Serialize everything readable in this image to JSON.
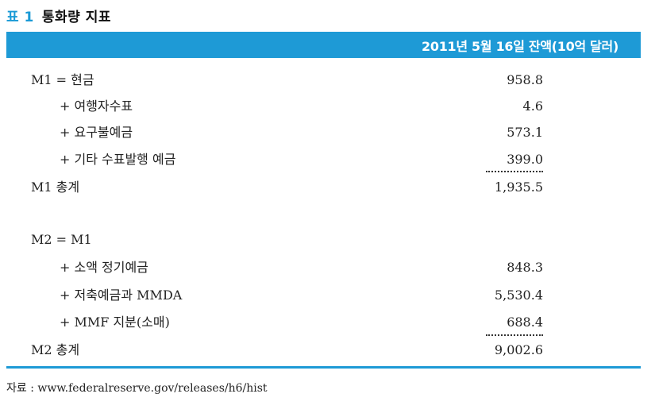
{
  "caption": {
    "label": "표 1",
    "title": "통화량 지표"
  },
  "header": {
    "text": "2011년 5월 16일 잔액(10억 달러)"
  },
  "m1": {
    "head": "M1 = 현금",
    "head_value": "958.8",
    "items": [
      {
        "label": "+ 여행자수표",
        "value": "4.6"
      },
      {
        "label": "+ 요구불예금",
        "value": "573.1"
      },
      {
        "label": "+ 기타 수표발행 예금",
        "value": "399.0"
      }
    ],
    "total_label": "M1 총계",
    "total_value": "1,935.5"
  },
  "m2": {
    "head": "M2 = M1",
    "items": [
      {
        "label": "+ 소액 정기예금",
        "value": "848.3"
      },
      {
        "label": "+ 저축예금과 MMDA",
        "value": "5,530.4"
      },
      {
        "label": "+ MMF 지분(소매)",
        "value": "688.4"
      }
    ],
    "total_label": "M2 총계",
    "total_value": "9,002.6"
  },
  "source": "자료 : www.federalreserve.gov/releases/h6/hist",
  "colors": {
    "accent": "#1e9ad6"
  }
}
